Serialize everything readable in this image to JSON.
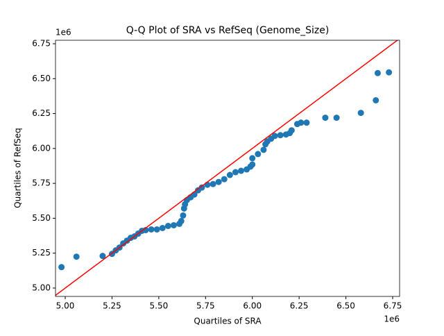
{
  "chart_data": {
    "type": "scatter",
    "title": "Q-Q Plot of SRA vs RefSeq (Genome_Size)",
    "x_label": "Quartiles of SRA",
    "y_label": "Quartiles of RefSeq",
    "x_offset_label": "1e6",
    "y_offset_label": "1e6",
    "xlim": [
      4.948,
      6.787
    ],
    "ylim": [
      4.94,
      6.775
    ],
    "xticks": [
      {
        "value": 5,
        "label": "5.00"
      },
      {
        "value": 5.25,
        "label": "5.25"
      },
      {
        "value": 5.5,
        "label": "5.50"
      },
      {
        "value": 5.75,
        "label": "5.75"
      },
      {
        "value": 6,
        "label": "6.00"
      },
      {
        "value": 6.25,
        "label": "6.25"
      },
      {
        "value": 6.5,
        "label": "6.50"
      },
      {
        "value": 6.75,
        "label": "6.75"
      }
    ],
    "yticks": [
      {
        "value": 5,
        "label": "5.00"
      },
      {
        "value": 5.25,
        "label": "5.25"
      },
      {
        "value": 5.5,
        "label": "5.50"
      },
      {
        "value": 5.75,
        "label": "5.75"
      },
      {
        "value": 6,
        "label": "6.00"
      },
      {
        "value": 6.25,
        "label": "6.25"
      },
      {
        "value": 6.5,
        "label": "6.50"
      },
      {
        "value": 6.75,
        "label": "6.75"
      }
    ],
    "series": [
      {
        "color": "#1f77b4",
        "x": [
          4.98,
          5.06,
          5.2,
          5.25,
          5.27,
          5.29,
          5.31,
          5.33,
          5.35,
          5.37,
          5.39,
          5.41,
          5.43,
          5.46,
          5.49,
          5.52,
          5.55,
          5.58,
          5.61,
          5.62,
          5.63,
          5.635,
          5.64,
          5.65,
          5.67,
          5.69,
          5.71,
          5.73,
          5.76,
          5.79,
          5.82,
          5.85,
          5.88,
          5.91,
          5.94,
          5.97,
          5.99,
          6.0,
          6.0,
          6.03,
          6.06,
          6.07,
          6.08,
          6.1,
          6.12,
          6.15,
          6.18,
          6.2,
          6.21,
          6.24,
          6.26,
          6.29,
          6.39,
          6.45,
          6.58,
          6.66,
          6.67,
          6.73
        ],
        "values": [
          5.15,
          5.225,
          5.23,
          5.245,
          5.27,
          5.29,
          5.32,
          5.34,
          5.36,
          5.37,
          5.39,
          5.41,
          5.415,
          5.42,
          5.42,
          5.43,
          5.445,
          5.45,
          5.46,
          5.48,
          5.52,
          5.57,
          5.6,
          5.63,
          5.65,
          5.67,
          5.7,
          5.72,
          5.74,
          5.745,
          5.76,
          5.78,
          5.81,
          5.83,
          5.84,
          5.85,
          5.87,
          5.885,
          5.93,
          5.96,
          5.99,
          6.03,
          6.05,
          6.07,
          6.09,
          6.095,
          6.1,
          6.11,
          6.13,
          6.175,
          6.185,
          6.185,
          6.22,
          6.22,
          6.255,
          6.345,
          6.54,
          6.545
        ]
      }
    ],
    "lines": [
      {
        "color": "#ff0000",
        "x": [
          4.9,
          6.8
        ],
        "values": [
          4.9,
          6.8
        ]
      }
    ]
  }
}
